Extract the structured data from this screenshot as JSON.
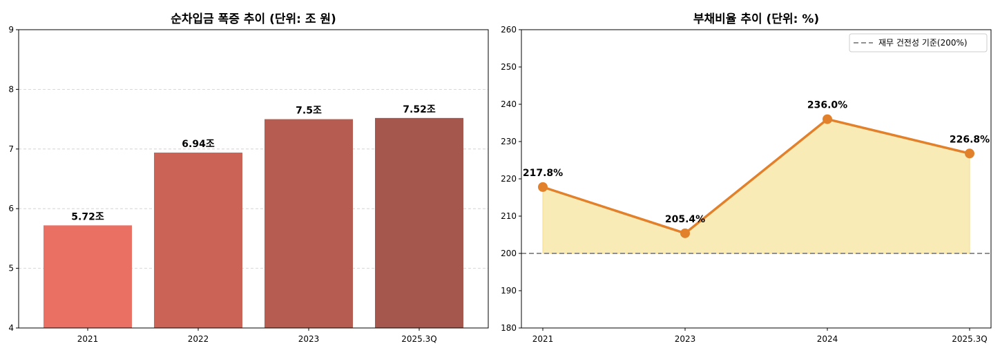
{
  "chart_data": [
    {
      "type": "bar",
      "title": "순차입금 폭증 추이 (단위: 조 원)",
      "categories": [
        "2021",
        "2022",
        "2023",
        "2025.3Q"
      ],
      "values": [
        5.72,
        6.94,
        7.5,
        7.52
      ],
      "data_labels": [
        "5.72조",
        "6.94조",
        "7.5조",
        "7.52조"
      ],
      "colors": [
        "#ea7063",
        "#cb6356",
        "#b65c51",
        "#a6574d"
      ],
      "ylim": [
        4,
        9
      ],
      "yticks": [
        "4",
        "5",
        "6",
        "7",
        "8",
        "9"
      ],
      "grid": true
    },
    {
      "type": "line",
      "title": "부채비율 추이 (단위: %)",
      "categories": [
        "2021",
        "2023",
        "2024",
        "2025.3Q"
      ],
      "values": [
        217.8,
        205.4,
        236.0,
        226.8
      ],
      "data_labels": [
        "217.8%",
        "205.4%",
        "236.0%",
        "226.8%"
      ],
      "line_color": "#e2812c",
      "fill_color": "#f9ebb5",
      "ylim": [
        180,
        260
      ],
      "yticks": [
        "180",
        "190",
        "200",
        "210",
        "220",
        "230",
        "240",
        "250",
        "260"
      ],
      "reference_line": {
        "value": 200,
        "label": "재무 건전성 기준(200%)",
        "color": "#808080"
      },
      "legend_position": "top-right",
      "grid": false
    }
  ]
}
